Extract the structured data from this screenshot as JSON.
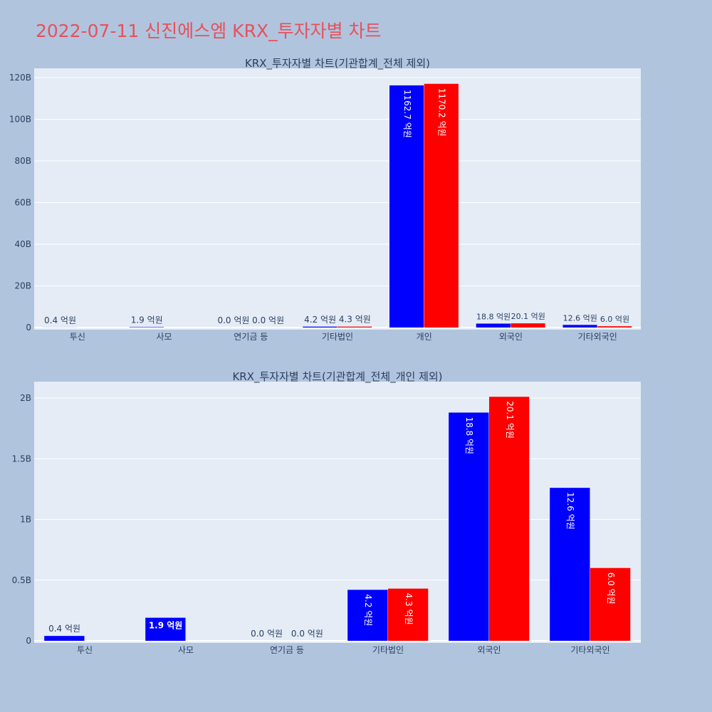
{
  "title": "2022-07-11 신진에스엠 KRX_투자자별 차트",
  "colors": {
    "buy": "#0000ff",
    "sell": "#ff0000",
    "plot_bg": "#e5ecf6",
    "page_bg": "#b0c4de",
    "title": "#e8505b"
  },
  "chart_data": [
    {
      "type": "bar",
      "title": "KRX_투자자별 차트(기관합계_전체 제외)",
      "categories": [
        "투신",
        "사모",
        "연기금 등",
        "기타법인",
        "개인",
        "외국인",
        "기타외국인"
      ],
      "ylim": [
        0,
        120
      ],
      "yticks": [
        0,
        20,
        40,
        60,
        80,
        100,
        120
      ],
      "ytick_labels": [
        "0",
        "20B",
        "40B",
        "60B",
        "80B",
        "100B",
        "120B"
      ],
      "series": [
        {
          "values": [
            0.04,
            0.19,
            0.0,
            0.42,
            116.27,
            1.88,
            1.26
          ],
          "labels": [
            "0.4 억원",
            "1.9 억원",
            "0.0 억원",
            "4.2 억원",
            "1162.7 억원",
            "18.8 억원",
            "12.6 억원"
          ]
        },
        {
          "values": [
            0.0,
            0.0,
            0.0,
            0.43,
            117.02,
            2.01,
            0.6
          ],
          "labels": [
            "",
            "",
            "0.0 억원",
            "4.3 억원",
            "1170.2 억원",
            "20.1 억원",
            "6.0 억원"
          ]
        }
      ]
    },
    {
      "type": "bar",
      "title": "KRX_투자자별 차트(기관합계_전체_개인 제외)",
      "categories": [
        "투신",
        "사모",
        "연기금 등",
        "기타법인",
        "외국인",
        "기타외국인"
      ],
      "ylim": [
        0,
        2.1
      ],
      "yticks": [
        0,
        0.5,
        1,
        1.5,
        2
      ],
      "ytick_labels": [
        "0",
        "0.5B",
        "1B",
        "1.5B",
        "2B"
      ],
      "series": [
        {
          "values": [
            0.04,
            0.19,
            0.0,
            0.42,
            1.88,
            1.26
          ],
          "labels": [
            "0.4 억원",
            "1.9 억원",
            "0.0 억원",
            "4.2 억원",
            "18.8 억원",
            "12.6 억원"
          ]
        },
        {
          "values": [
            0.0,
            0.0,
            0.0,
            0.43,
            2.01,
            0.6
          ],
          "labels": [
            "",
            "",
            "0.0 억원",
            "4.3 억원",
            "20.1 억원",
            "6.0 억원"
          ]
        }
      ]
    }
  ]
}
